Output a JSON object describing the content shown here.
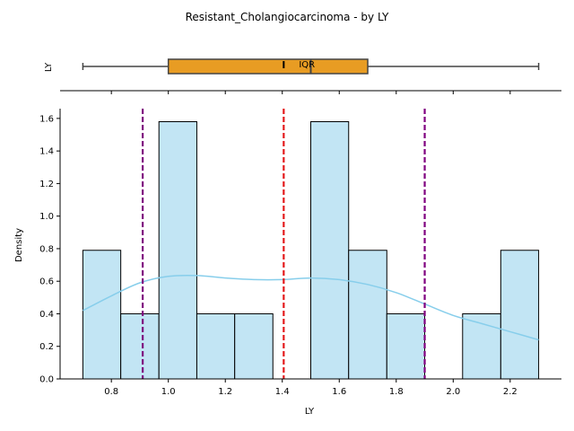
{
  "chart_data": {
    "type": "histogram",
    "title": "Resistant_Cholangiocarcinoma - by LY",
    "xlabel": "LY",
    "ylabel": "Density",
    "box_ylabel": "LY",
    "xlim": [
      0.62,
      2.38
    ],
    "ylim": [
      0,
      1.66
    ],
    "xticks": [
      "0.8",
      "1.0",
      "1.2",
      "1.4",
      "1.6",
      "1.8",
      "2.0",
      "2.2"
    ],
    "xtick_values": [
      0.8,
      1.0,
      1.2,
      1.4,
      1.6,
      1.8,
      2.0,
      2.2
    ],
    "yticks": [
      "0.0",
      "0.2",
      "0.4",
      "0.6",
      "0.8",
      "1.0",
      "1.2",
      "1.4",
      "1.6"
    ],
    "ytick_values": [
      0.0,
      0.2,
      0.4,
      0.6,
      0.8,
      1.0,
      1.2,
      1.4,
      1.6
    ],
    "grid": false,
    "bins": [
      {
        "x0": 0.7,
        "x1": 0.833,
        "density": 0.79
      },
      {
        "x0": 0.833,
        "x1": 0.967,
        "density": 0.4
      },
      {
        "x0": 0.967,
        "x1": 1.1,
        "density": 1.58
      },
      {
        "x0": 1.1,
        "x1": 1.233,
        "density": 0.4
      },
      {
        "x0": 1.233,
        "x1": 1.367,
        "density": 0.4
      },
      {
        "x0": 1.367,
        "x1": 1.5,
        "density": 0.0
      },
      {
        "x0": 1.5,
        "x1": 1.633,
        "density": 1.58
      },
      {
        "x0": 1.633,
        "x1": 1.767,
        "density": 0.79
      },
      {
        "x0": 1.767,
        "x1": 1.9,
        "density": 0.4
      },
      {
        "x0": 1.9,
        "x1": 2.033,
        "density": 0.0
      },
      {
        "x0": 2.033,
        "x1": 2.167,
        "density": 0.4
      },
      {
        "x0": 2.167,
        "x1": 2.3,
        "density": 0.79
      }
    ],
    "kde": {
      "x": [
        0.7,
        0.8,
        0.9,
        1.0,
        1.1,
        1.2,
        1.3,
        1.4,
        1.5,
        1.6,
        1.7,
        1.8,
        1.9,
        2.0,
        2.1,
        2.2,
        2.3
      ],
      "y": [
        0.42,
        0.51,
        0.59,
        0.63,
        0.635,
        0.62,
        0.61,
        0.61,
        0.62,
        0.61,
        0.58,
        0.53,
        0.46,
        0.39,
        0.34,
        0.29,
        0.24
      ]
    },
    "reference_lines": [
      {
        "x": 0.91,
        "kind": "lower",
        "color": "#800080"
      },
      {
        "x": 1.405,
        "kind": "mean",
        "color": "#e41a1c"
      },
      {
        "x": 1.9,
        "kind": "upper",
        "color": "#800080"
      }
    ],
    "boxplot": {
      "min": 0.7,
      "q1": 1.0,
      "median": 1.5,
      "q3": 1.7,
      "max": 2.3,
      "mean_marker": 1.405,
      "annotation": "IQR"
    },
    "colors": {
      "bar_fill": "#c2e5f4",
      "bar_edge": "#000000",
      "kde": "#87ceeb",
      "box_fill": "#e89c23",
      "box_edge": "#444444"
    }
  }
}
